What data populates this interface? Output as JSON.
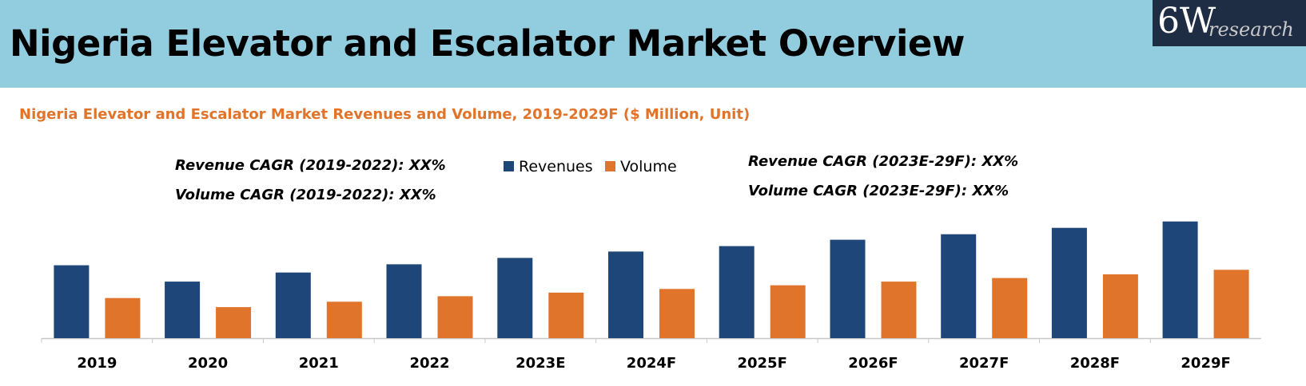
{
  "header": {
    "title": "Nigeria Elevator and Escalator Market Overview",
    "logo_main": "6W",
    "logo_sub": "research",
    "background": "#92cddf",
    "logo_background": "#1e2d44"
  },
  "chart_data": {
    "type": "bar",
    "title": "Nigeria Elevator and Escalator Market Revenues and Volume, 2019-2029F ($ Million, Unit)",
    "categories": [
      "2019",
      "2020",
      "2021",
      "2022",
      "2023E",
      "2024F",
      "2025F",
      "2026F",
      "2027F",
      "2028F",
      "2029F"
    ],
    "series": [
      {
        "name": "Revenues",
        "color": "#1f4679",
        "values": [
          80,
          62,
          72,
          81,
          88,
          95,
          101,
          108,
          114,
          121,
          128
        ]
      },
      {
        "name": "Volume",
        "color": "#e0742a",
        "values": [
          44,
          34,
          40,
          46,
          50,
          54,
          58,
          62,
          66,
          70,
          75
        ]
      }
    ],
    "ylim": [
      0,
      140
    ],
    "grid": false,
    "legend": "top-center",
    "xlabel": "",
    "ylabel": "",
    "annotations": {
      "revenue_cagr_hist": "Revenue CAGR (2019-2022): XX%",
      "volume_cagr_hist": "Volume CAGR (2019-2022): XX%",
      "revenue_cagr_fc": "Revenue CAGR (2023E-29F): XX%",
      "volume_cagr_fc": "Volume CAGR (2023E-29F): XX%"
    }
  }
}
